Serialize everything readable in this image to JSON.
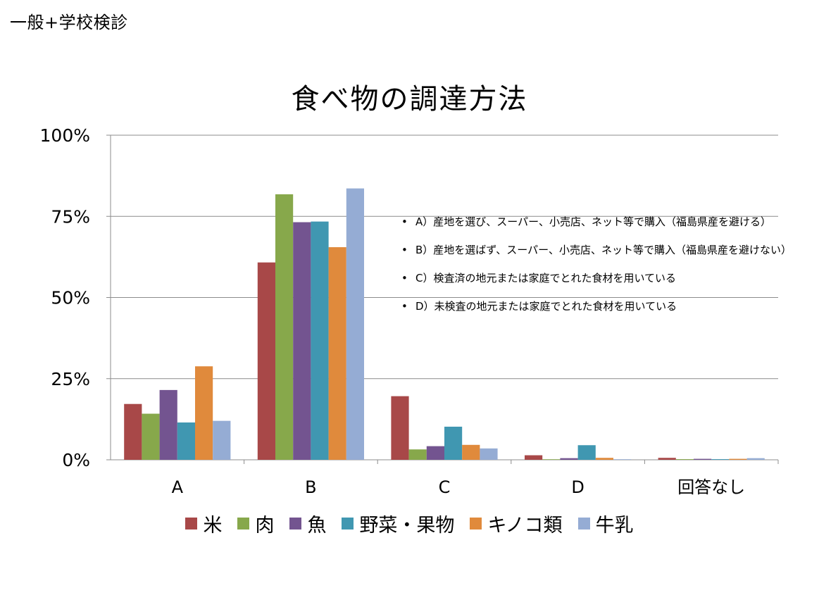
{
  "header": {
    "corner_label": "一般+学校検診"
  },
  "chart_data": {
    "type": "bar",
    "title": "食べ物の調達方法",
    "categories": [
      "A",
      "B",
      "C",
      "D",
      "回答なし"
    ],
    "y_ticks": [
      "0%",
      "25%",
      "50%",
      "75%",
      "100%"
    ],
    "ylim": [
      0,
      100
    ],
    "grid": true,
    "legend_position": "bottom",
    "series": [
      {
        "name": "米",
        "color": "#A84848",
        "values": [
          17.2,
          60.8,
          19.6,
          1.4,
          0.6
        ]
      },
      {
        "name": "肉",
        "color": "#87A84B",
        "values": [
          14.2,
          81.8,
          3.2,
          0.1,
          0.2
        ]
      },
      {
        "name": "魚",
        "color": "#735490",
        "values": [
          21.5,
          73.2,
          4.2,
          0.5,
          0.3
        ]
      },
      {
        "name": "野菜・果物",
        "color": "#4097B1",
        "values": [
          11.5,
          73.4,
          10.2,
          4.5,
          0.2
        ]
      },
      {
        "name": "キノコ類",
        "color": "#E08A3C",
        "values": [
          28.8,
          65.5,
          4.6,
          0.6,
          0.3
        ]
      },
      {
        "name": "牛乳",
        "color": "#95ACD4",
        "values": [
          12.0,
          83.6,
          3.5,
          0.1,
          0.5
        ]
      }
    ],
    "notes": [
      "A）産地を選び、スーパー、小売店、ネット等で購入（福島県産を避ける）",
      "B）産地を選ばず、スーパー、小売店、ネット等で購入（福島県産を避けない）",
      "C）検査済の地元または家庭でとれた食材を用いている",
      "D）未検査の地元または家庭でとれた食材を用いている"
    ],
    "note_bullet": "•"
  }
}
